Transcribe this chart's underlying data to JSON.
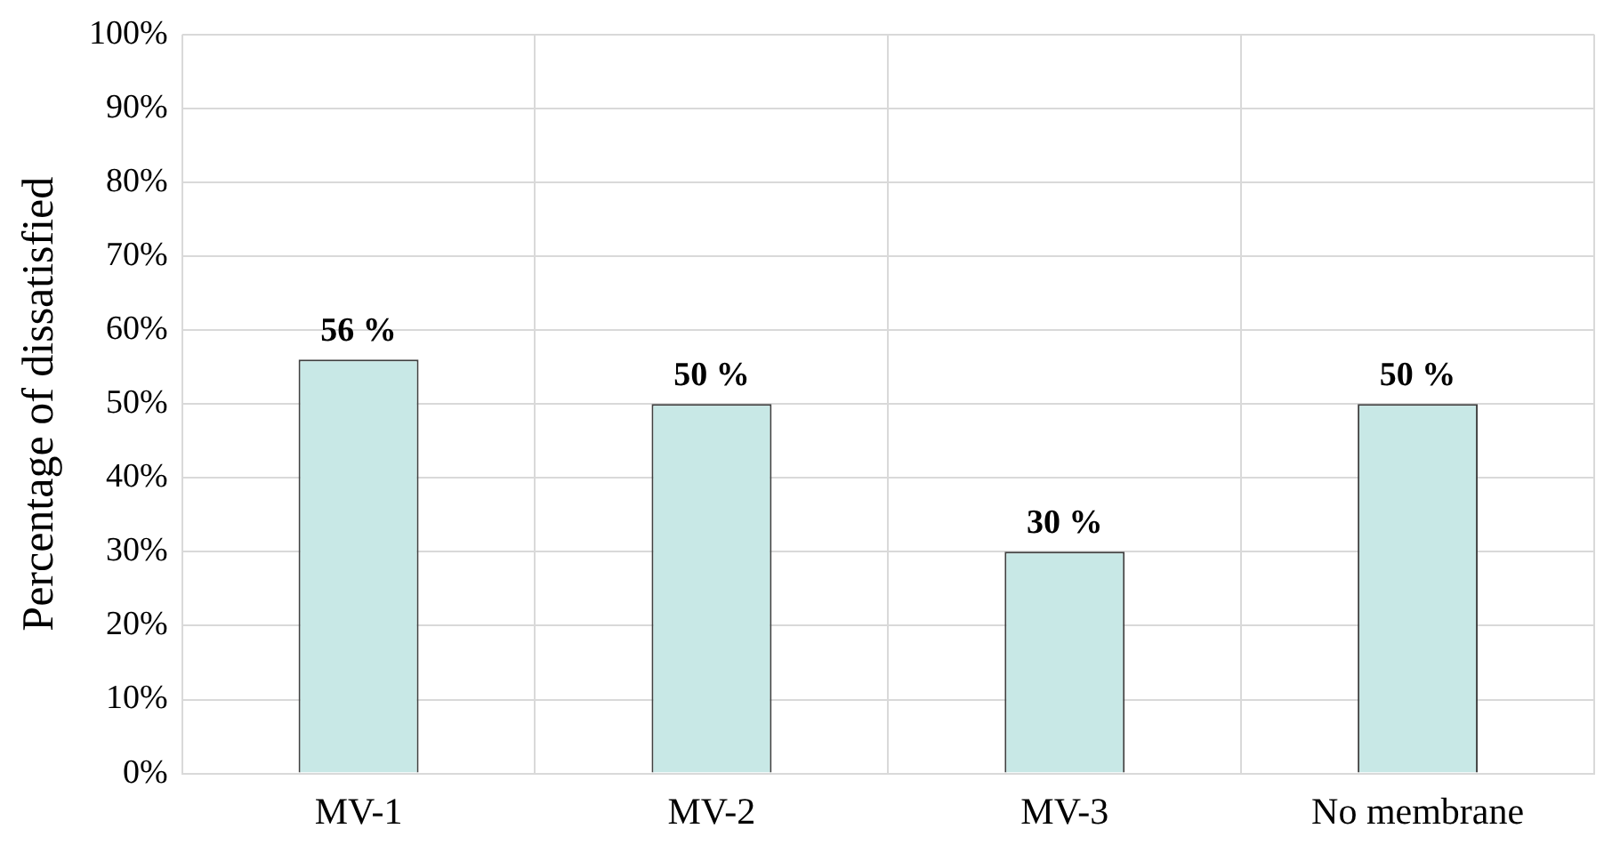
{
  "chart_data": {
    "type": "bar",
    "ylabel": "Percentage of dissatisfied",
    "categories": [
      "MV-1",
      "MV-2",
      "MV-3",
      "No membrane"
    ],
    "values": [
      56,
      50,
      30,
      50
    ],
    "value_labels": [
      "56 %",
      "50 %",
      "30 %",
      "50 %"
    ],
    "color": "#c8e8e6",
    "ylim": [
      0,
      100
    ],
    "yticks": [
      {
        "value": 0,
        "label": "0%"
      },
      {
        "value": 10,
        "label": "10%"
      },
      {
        "value": 20,
        "label": "20%"
      },
      {
        "value": 30,
        "label": "30%"
      },
      {
        "value": 40,
        "label": "40%"
      },
      {
        "value": 50,
        "label": "50%"
      },
      {
        "value": 60,
        "label": "60%"
      },
      {
        "value": 70,
        "label": "70%"
      },
      {
        "value": 80,
        "label": "80%"
      },
      {
        "value": 90,
        "label": "90%"
      },
      {
        "value": 100,
        "label": "100%"
      }
    ],
    "grid": true
  }
}
